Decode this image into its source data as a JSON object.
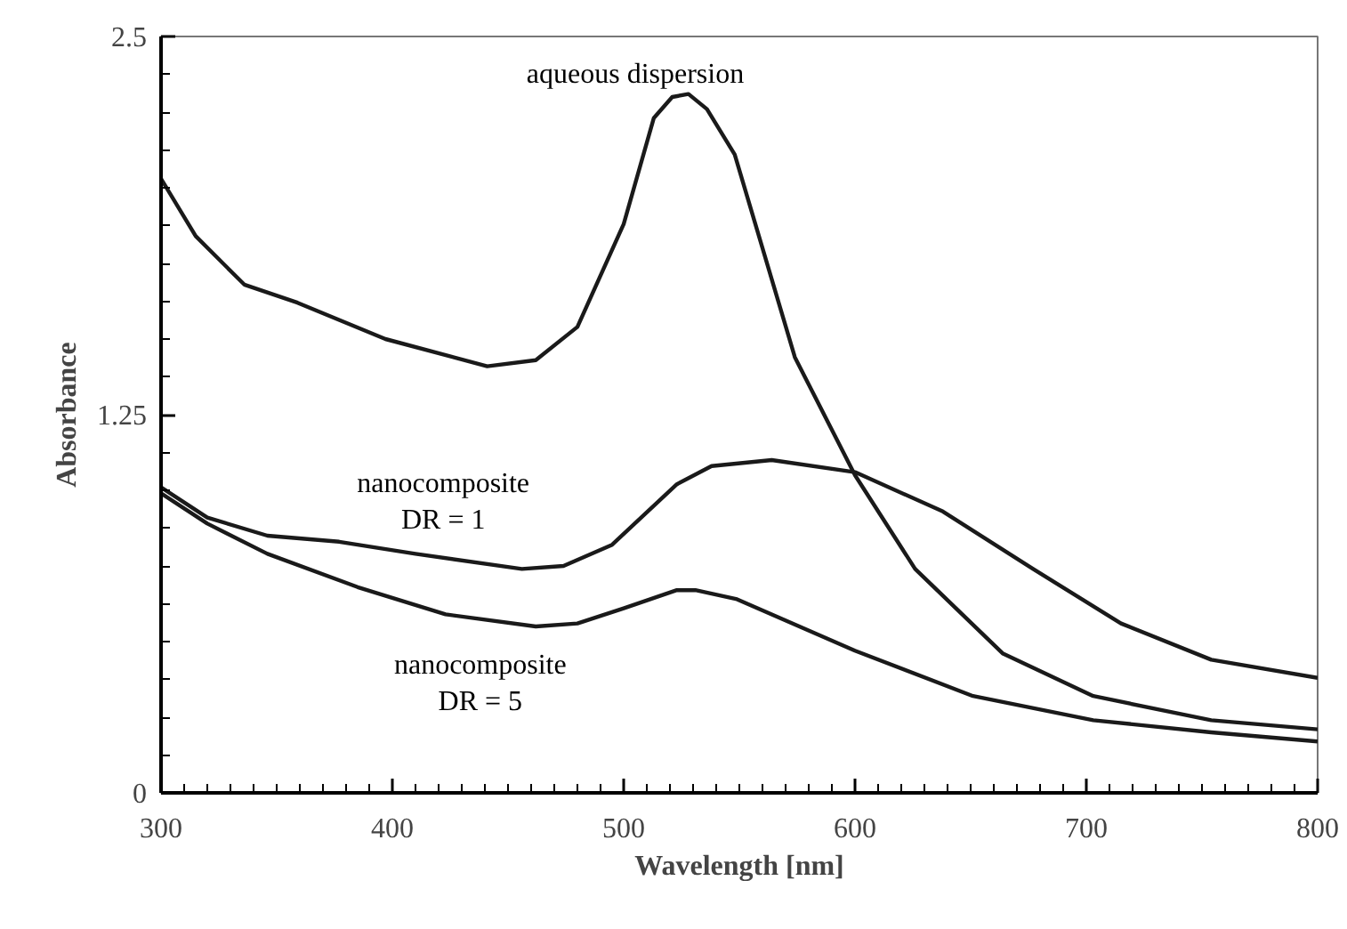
{
  "chart_data": {
    "type": "line",
    "xlabel": "Wavelength [nm]",
    "ylabel": "Absorbance",
    "xlim": [
      300,
      800
    ],
    "ylim": [
      0,
      2.5
    ],
    "xticks": [
      300,
      400,
      500,
      600,
      700,
      800
    ],
    "yticks": [
      0,
      1.25,
      2.5
    ],
    "grid": false,
    "legend": false,
    "marker": "none",
    "line_style": "solid",
    "series": [
      {
        "name": "aqueous dispersion",
        "color": "#1a1a1a",
        "x": [
          300,
          315,
          336,
          359,
          397,
          441,
          462,
          480,
          500,
          513,
          521,
          528,
          536,
          548,
          574,
          600,
          626,
          664,
          703,
          754,
          800
        ],
        "values": [
          2.03,
          1.84,
          1.68,
          1.62,
          1.5,
          1.41,
          1.43,
          1.54,
          1.88,
          2.23,
          2.3,
          2.31,
          2.26,
          2.11,
          1.44,
          1.05,
          0.74,
          0.46,
          0.32,
          0.24,
          0.21
        ]
      },
      {
        "name": "nanocomposite\nDR = 1",
        "color": "#1a1a1a",
        "x": [
          300,
          320,
          346,
          377,
          410,
          456,
          474,
          495,
          523,
          538,
          564,
          600,
          638,
          677,
          715,
          754,
          800
        ],
        "values": [
          1.01,
          0.91,
          0.85,
          0.83,
          0.79,
          0.74,
          0.75,
          0.82,
          1.02,
          1.08,
          1.1,
          1.06,
          0.93,
          0.74,
          0.56,
          0.44,
          0.38
        ]
      },
      {
        "name": "nanocomposite\nDR = 5",
        "color": "#1a1a1a",
        "x": [
          300,
          320,
          346,
          385,
          423,
          462,
          480,
          500,
          523,
          531,
          549,
          600,
          651,
          703,
          754,
          800
        ],
        "values": [
          0.99,
          0.89,
          0.79,
          0.68,
          0.59,
          0.55,
          0.56,
          0.61,
          0.67,
          0.67,
          0.64,
          0.47,
          0.32,
          0.24,
          0.2,
          0.17
        ]
      }
    ]
  }
}
